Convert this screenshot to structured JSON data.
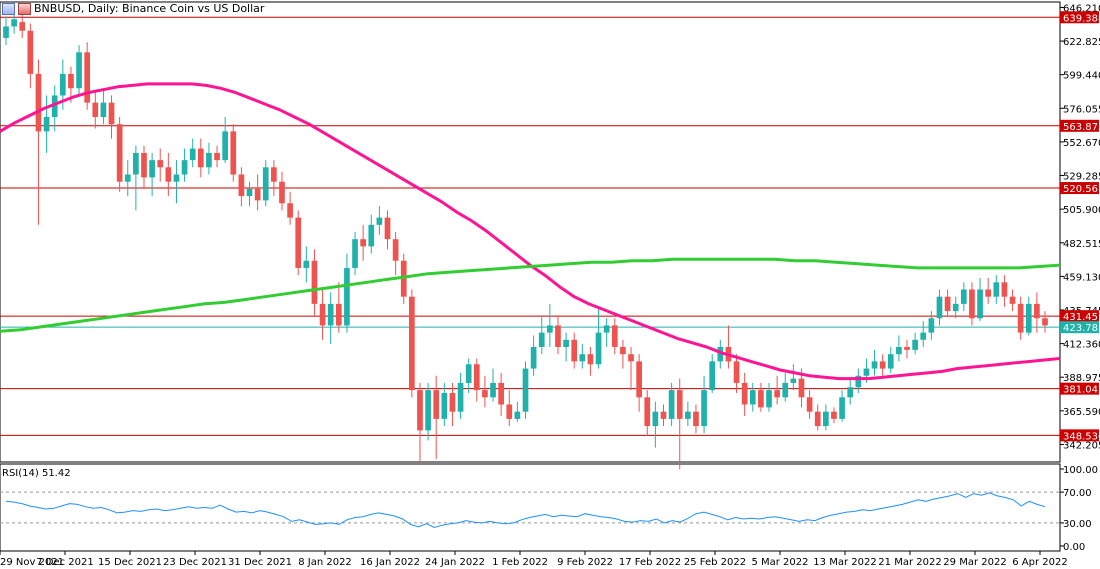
{
  "header": {
    "symbol_title": "BNBUSD, Daily:  Binance Coin vs US Dollar"
  },
  "rsi_panel": {
    "label": "RSI(14) 51.42"
  },
  "colors": {
    "bull": "#20b2aa",
    "bear": "#ef5350",
    "ma_fast": "#ff1493",
    "ma_slow": "#32cd32",
    "level": "#cc0000",
    "rsi": "#1e90ff",
    "grid": "#e6e6e6"
  },
  "chart_data": [
    {
      "type": "candlestick",
      "title": "BNBUSD, Daily:  Binance Coin vs US Dollar",
      "y_ticks": [
        "646.210",
        "622.825",
        "599.440",
        "576.055",
        "552.670",
        "529.285",
        "505.900",
        "482.515",
        "459.130",
        "435.745",
        "412.360",
        "388.975",
        "365.590",
        "342.205"
      ],
      "ylim": [
        330,
        650
      ],
      "x_ticks": [
        "29 Nov 2021",
        "7 Dec 2021",
        "15 Dec 2021",
        "23 Dec 2021",
        "31 Dec 2021",
        "8 Jan 2022",
        "16 Jan 2022",
        "24 Jan 2022",
        "1 Feb 2022",
        "9 Feb 2022",
        "17 Feb 2022",
        "25 Feb 2022",
        "5 Mar 2022",
        "13 Mar 2022",
        "21 Mar 2022",
        "29 Mar 2022",
        "6 Apr 2022"
      ],
      "horizontal_levels": [
        "639.388",
        "563.875",
        "520.567",
        "431.451",
        "381.042",
        "348.536"
      ],
      "current_price_label": "423.783",
      "current_price": 423.783,
      "candles": [
        [
          625,
          633,
          640,
          620
        ],
        [
          633,
          638,
          648,
          628
        ],
        [
          636,
          630,
          642,
          625
        ],
        [
          630,
          600,
          635,
          590
        ],
        [
          600,
          560,
          610,
          495
        ],
        [
          560,
          570,
          585,
          545
        ],
        [
          570,
          585,
          592,
          560
        ],
        [
          585,
          600,
          610,
          575
        ],
        [
          600,
          590,
          605,
          580
        ],
        [
          590,
          615,
          620,
          585
        ],
        [
          615,
          580,
          622,
          575
        ],
        [
          580,
          570,
          588,
          562
        ],
        [
          570,
          580,
          590,
          565
        ],
        [
          580,
          565,
          585,
          555
        ],
        [
          565,
          525,
          570,
          518
        ],
        [
          525,
          530,
          540,
          515
        ],
        [
          530,
          545,
          550,
          505
        ],
        [
          545,
          528,
          550,
          520
        ],
        [
          528,
          540,
          545,
          515
        ],
        [
          540,
          535,
          548,
          525
        ],
        [
          535,
          525,
          545,
          515
        ],
        [
          525,
          530,
          540,
          510
        ],
        [
          530,
          540,
          548,
          525
        ],
        [
          540,
          548,
          555,
          535
        ],
        [
          548,
          535,
          555,
          528
        ],
        [
          535,
          545,
          552,
          530
        ],
        [
          545,
          540,
          550,
          535
        ],
        [
          540,
          560,
          570,
          538
        ],
        [
          560,
          530,
          565,
          525
        ],
        [
          530,
          515,
          535,
          508
        ],
        [
          515,
          520,
          525,
          508
        ],
        [
          520,
          512,
          530,
          505
        ],
        [
          512,
          535,
          540,
          508
        ],
        [
          535,
          525,
          540,
          515
        ],
        [
          525,
          510,
          532,
          505
        ],
        [
          510,
          500,
          518,
          495
        ],
        [
          500,
          465,
          505,
          460
        ],
        [
          465,
          470,
          480,
          455
        ],
        [
          470,
          440,
          478,
          432
        ],
        [
          440,
          425,
          450,
          415
        ],
        [
          425,
          440,
          448,
          412
        ],
        [
          440,
          425,
          455,
          420
        ],
        [
          425,
          465,
          475,
          420
        ],
        [
          465,
          485,
          490,
          460
        ],
        [
          485,
          480,
          495,
          470
        ],
        [
          480,
          495,
          502,
          475
        ],
        [
          495,
          500,
          508,
          488
        ],
        [
          500,
          485,
          505,
          478
        ],
        [
          485,
          470,
          490,
          460
        ],
        [
          470,
          445,
          475,
          440
        ],
        [
          445,
          380,
          450,
          375
        ],
        [
          380,
          352,
          385,
          330
        ],
        [
          352,
          380,
          385,
          345
        ],
        [
          380,
          360,
          390,
          332
        ],
        [
          360,
          378,
          385,
          355
        ],
        [
          378,
          365,
          385,
          355
        ],
        [
          365,
          385,
          392,
          360
        ],
        [
          385,
          398,
          402,
          378
        ],
        [
          398,
          380,
          402,
          372
        ],
        [
          380,
          375,
          390,
          368
        ],
        [
          375,
          385,
          395,
          372
        ],
        [
          385,
          370,
          392,
          362
        ],
        [
          370,
          360,
          380,
          355
        ],
        [
          360,
          365,
          372,
          358
        ],
        [
          365,
          395,
          400,
          360
        ],
        [
          395,
          410,
          418,
          390
        ],
        [
          410,
          420,
          432,
          405
        ],
        [
          420,
          425,
          440,
          410
        ],
        [
          425,
          410,
          432,
          405
        ],
        [
          410,
          415,
          420,
          400
        ],
        [
          415,
          400,
          420,
          395
        ],
        [
          400,
          405,
          412,
          395
        ],
        [
          405,
          398,
          410,
          390
        ],
        [
          398,
          420,
          438,
          395
        ],
        [
          420,
          425,
          430,
          410
        ],
        [
          425,
          410,
          430,
          405
        ],
        [
          410,
          405,
          415,
          395
        ],
        [
          405,
          400,
          410,
          380
        ],
        [
          400,
          375,
          405,
          365
        ],
        [
          375,
          355,
          380,
          348
        ],
        [
          355,
          365,
          372,
          340
        ],
        [
          365,
          360,
          370,
          355
        ],
        [
          360,
          380,
          385,
          355
        ],
        [
          380,
          360,
          388,
          325
        ],
        [
          360,
          365,
          372,
          355
        ],
        [
          365,
          355,
          370,
          350
        ],
        [
          355,
          380,
          390,
          350
        ],
        [
          380,
          400,
          405,
          378
        ],
        [
          400,
          410,
          415,
          395
        ],
        [
          410,
          400,
          425,
          395
        ],
        [
          400,
          385,
          405,
          378
        ],
        [
          385,
          370,
          392,
          362
        ],
        [
          370,
          380,
          385,
          365
        ],
        [
          380,
          368,
          385,
          365
        ],
        [
          368,
          380,
          385,
          365
        ],
        [
          380,
          375,
          390,
          370
        ],
        [
          375,
          385,
          392,
          372
        ],
        [
          385,
          388,
          398,
          380
        ],
        [
          388,
          375,
          395,
          368
        ],
        [
          375,
          365,
          380,
          360
        ],
        [
          365,
          355,
          370,
          352
        ],
        [
          355,
          365,
          370,
          352
        ],
        [
          365,
          360,
          368,
          357
        ],
        [
          360,
          375,
          380,
          358
        ],
        [
          375,
          382,
          388,
          370
        ],
        [
          382,
          390,
          395,
          378
        ],
        [
          390,
          395,
          402,
          385
        ],
        [
          395,
          400,
          408,
          390
        ],
        [
          400,
          395,
          405,
          388
        ],
        [
          395,
          405,
          410,
          392
        ],
        [
          405,
          410,
          418,
          400
        ],
        [
          410,
          408,
          415,
          402
        ],
        [
          408,
          415,
          420,
          405
        ],
        [
          415,
          420,
          428,
          410
        ],
        [
          420,
          430,
          435,
          415
        ],
        [
          430,
          445,
          450,
          425
        ],
        [
          445,
          435,
          450,
          432
        ],
        [
          435,
          440,
          445,
          430
        ],
        [
          440,
          450,
          455,
          435
        ],
        [
          450,
          430,
          455,
          425
        ],
        [
          430,
          450,
          458,
          428
        ],
        [
          450,
          445,
          458,
          440
        ],
        [
          445,
          455,
          460,
          440
        ],
        [
          455,
          445,
          460,
          438
        ],
        [
          445,
          440,
          450,
          435
        ],
        [
          440,
          420,
          445,
          415
        ],
        [
          420,
          440,
          445,
          418
        ],
        [
          440,
          430,
          448,
          420
        ],
        [
          430,
          425,
          435,
          420
        ]
      ],
      "series": [
        {
          "values": [
            560,
            566,
            571,
            576,
            580,
            584,
            587,
            589,
            591,
            592,
            593,
            593,
            593,
            593,
            592,
            590,
            587,
            583,
            579,
            575,
            570,
            565,
            559,
            553,
            547,
            541,
            535,
            529,
            523,
            517,
            511,
            504,
            498,
            491,
            483,
            475,
            467,
            460,
            452,
            445,
            440,
            436,
            432,
            428,
            424,
            420,
            416,
            413,
            410,
            406,
            403,
            400,
            397,
            394,
            392,
            390,
            389,
            388,
            388,
            388,
            389,
            390,
            391,
            392,
            393,
            395,
            396,
            397,
            398,
            399,
            400,
            401,
            402
          ]
        },
        {
          "values": [
            421,
            422,
            424,
            426,
            428,
            430,
            432,
            434,
            436,
            438,
            440,
            441,
            443,
            445,
            447,
            449,
            451,
            453,
            455,
            457,
            459,
            461,
            462,
            463,
            464,
            465,
            466,
            467,
            468,
            469,
            469,
            470,
            470,
            471,
            471,
            471,
            471,
            471,
            471,
            470,
            470,
            469,
            468,
            467,
            466,
            465,
            465,
            465,
            465,
            465,
            465,
            466,
            467
          ]
        }
      ]
    },
    {
      "type": "line",
      "title": "RSI(14) 51.42",
      "y_ticks": [
        "100.00",
        "70.00",
        "30.00",
        "0.00"
      ],
      "ylim": [
        0,
        100
      ],
      "levels": [
        70,
        30
      ],
      "values": [
        58,
        57,
        55,
        52,
        50,
        48,
        49,
        52,
        55,
        54,
        51,
        49,
        50,
        47,
        43,
        44,
        46,
        45,
        47,
        48,
        46,
        47,
        49,
        51,
        49,
        50,
        49,
        53,
        48,
        44,
        45,
        43,
        46,
        44,
        41,
        38,
        32,
        34,
        31,
        28,
        29,
        30,
        28,
        34,
        37,
        38,
        41,
        43,
        41,
        39,
        35,
        28,
        25,
        29,
        24,
        27,
        29,
        30,
        33,
        31,
        30,
        32,
        30,
        29,
        30,
        34,
        37,
        39,
        41,
        38,
        40,
        39,
        38,
        42,
        40,
        38,
        37,
        35,
        32,
        31,
        33,
        32,
        35,
        30,
        33,
        31,
        36,
        42,
        44,
        41,
        38,
        34,
        37,
        35,
        36,
        35,
        37,
        38,
        36,
        34,
        32,
        34,
        33,
        37,
        40,
        42,
        44,
        45,
        47,
        46,
        48,
        50,
        52,
        54,
        57,
        60,
        58,
        61,
        63,
        65,
        68,
        63,
        68,
        66,
        69,
        65,
        63,
        60,
        52,
        58,
        54,
        51
      ]
    }
  ]
}
